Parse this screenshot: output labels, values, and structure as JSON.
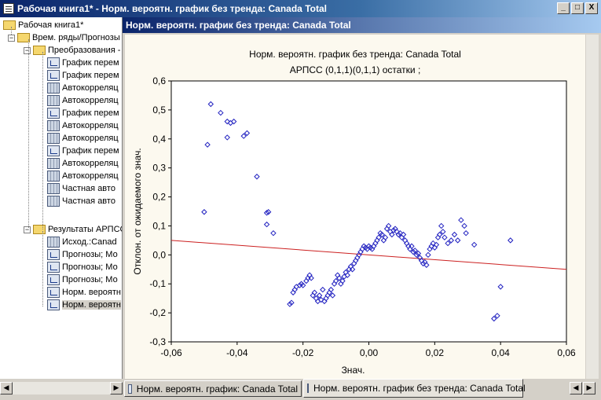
{
  "window": {
    "title": "Рабочая книга1* - Норм. вероятн. график без тренда: Canada Total",
    "min": "_",
    "max": "□",
    "close": "X"
  },
  "tree": {
    "root": "Рабочая книга1*",
    "level1": "Врем. ряды/Прогнозы",
    "group1": "Преобразования -",
    "group1_items": [
      "График перем",
      "График перем",
      "Автокорреляц",
      "Автокорреляц",
      "График перем",
      "Автокорреляц",
      "Автокорреляц",
      "График перем",
      "Автокорреляц",
      "Автокорреляц",
      "Частная авто",
      "Частная авто"
    ],
    "group2": "Результаты АРПСС",
    "group2_items": [
      "Исход.:Canad",
      "Прогнозы; Мо",
      "Прогнозы; Мо",
      "Прогнозы; Мо",
      "Норм. вероятн",
      "Норм. вероятн"
    ]
  },
  "child_window": {
    "title": "Норм. вероятн. график без тренда: Canada Total"
  },
  "tabs": [
    "Норм. вероятн. график:  Canada Total",
    "Норм. вероятн. график без тренда: Canada Total"
  ],
  "chart_data": {
    "type": "scatter",
    "title": "Норм. вероятн. график без тренда: Canada Total",
    "subtitle": "АРПСС (0,1,1)(0,1,1) остатки  ;",
    "xlabel": "Знач.",
    "ylabel": "Отклон. от ожидаемого знач.",
    "xlim": [
      -0.06,
      0.06
    ],
    "ylim": [
      -0.3,
      0.6
    ],
    "xticks": [
      "-0,06",
      "-0,04",
      "-0,02",
      "0,00",
      "0,02",
      "0,04",
      "0,06"
    ],
    "yticks": [
      "-0,3",
      "-0,2",
      "-0,1",
      "0,0",
      "0,1",
      "0,2",
      "0,3",
      "0,4",
      "0,5",
      "0,6"
    ],
    "line": {
      "x": [
        -0.06,
        0.06
      ],
      "y": [
        0.05,
        -0.05
      ],
      "color": "#cc2020"
    },
    "point_color": "#2020c0",
    "points": [
      [
        -0.048,
        0.52
      ],
      [
        -0.045,
        0.49
      ],
      [
        -0.043,
        0.46
      ],
      [
        -0.042,
        0.455
      ],
      [
        -0.041,
        0.46
      ],
      [
        -0.038,
        0.41
      ],
      [
        -0.037,
        0.42
      ],
      [
        -0.043,
        0.405
      ],
      [
        -0.049,
        0.38
      ],
      [
        -0.034,
        0.27
      ],
      [
        -0.031,
        0.145
      ],
      [
        -0.0305,
        0.148
      ],
      [
        -0.031,
        0.105
      ],
      [
        -0.029,
        0.075
      ],
      [
        -0.05,
        0.148
      ],
      [
        -0.024,
        -0.17
      ],
      [
        -0.0235,
        -0.165
      ],
      [
        -0.023,
        -0.13
      ],
      [
        -0.0225,
        -0.12
      ],
      [
        -0.022,
        -0.11
      ],
      [
        -0.021,
        -0.105
      ],
      [
        -0.0205,
        -0.1
      ],
      [
        -0.02,
        -0.105
      ],
      [
        -0.019,
        -0.09
      ],
      [
        -0.0185,
        -0.08
      ],
      [
        -0.018,
        -0.07
      ],
      [
        -0.0175,
        -0.08
      ],
      [
        -0.017,
        -0.14
      ],
      [
        -0.0165,
        -0.13
      ],
      [
        -0.016,
        -0.15
      ],
      [
        -0.0155,
        -0.16
      ],
      [
        -0.015,
        -0.14
      ],
      [
        -0.0145,
        -0.155
      ],
      [
        -0.014,
        -0.12
      ],
      [
        -0.0135,
        -0.16
      ],
      [
        -0.013,
        -0.15
      ],
      [
        -0.0125,
        -0.14
      ],
      [
        -0.012,
        -0.13
      ],
      [
        -0.0115,
        -0.12
      ],
      [
        -0.011,
        -0.14
      ],
      [
        -0.0105,
        -0.1
      ],
      [
        -0.01,
        -0.09
      ],
      [
        -0.0095,
        -0.07
      ],
      [
        -0.009,
        -0.08
      ],
      [
        -0.0085,
        -0.1
      ],
      [
        -0.008,
        -0.09
      ],
      [
        -0.0075,
        -0.075
      ],
      [
        -0.007,
        -0.06
      ],
      [
        -0.0065,
        -0.07
      ],
      [
        -0.006,
        -0.05
      ],
      [
        -0.0055,
        -0.04
      ],
      [
        -0.005,
        -0.05
      ],
      [
        -0.0045,
        -0.03
      ],
      [
        -0.004,
        -0.02
      ],
      [
        -0.0035,
        -0.01
      ],
      [
        -0.003,
        0.0
      ],
      [
        -0.0025,
        0.01
      ],
      [
        -0.002,
        0.02
      ],
      [
        -0.0015,
        0.03
      ],
      [
        -0.001,
        0.025
      ],
      [
        -0.0005,
        0.02
      ],
      [
        0.0,
        0.03
      ],
      [
        0.0005,
        0.025
      ],
      [
        0.001,
        0.02
      ],
      [
        0.0015,
        0.03
      ],
      [
        0.002,
        0.04
      ],
      [
        0.0025,
        0.05
      ],
      [
        0.003,
        0.06
      ],
      [
        0.0035,
        0.075
      ],
      [
        0.004,
        0.07
      ],
      [
        0.0045,
        0.05
      ],
      [
        0.005,
        0.06
      ],
      [
        0.0055,
        0.09
      ],
      [
        0.006,
        0.1
      ],
      [
        0.0065,
        0.08
      ],
      [
        0.007,
        0.07
      ],
      [
        0.0075,
        0.085
      ],
      [
        0.008,
        0.09
      ],
      [
        0.0085,
        0.08
      ],
      [
        0.009,
        0.07
      ],
      [
        0.0095,
        0.075
      ],
      [
        0.01,
        0.06
      ],
      [
        0.0105,
        0.07
      ],
      [
        0.011,
        0.05
      ],
      [
        0.0115,
        0.04
      ],
      [
        0.012,
        0.03
      ],
      [
        0.0125,
        0.02
      ],
      [
        0.013,
        0.03
      ],
      [
        0.0135,
        0.01
      ],
      [
        0.014,
        0.015
      ],
      [
        0.0145,
        0.0
      ],
      [
        0.015,
        0.005
      ],
      [
        0.0155,
        -0.01
      ],
      [
        0.016,
        -0.02
      ],
      [
        0.0165,
        -0.03
      ],
      [
        0.017,
        -0.025
      ],
      [
        0.0175,
        -0.035
      ],
      [
        0.018,
        0.0
      ],
      [
        0.0185,
        0.02
      ],
      [
        0.019,
        0.03
      ],
      [
        0.0195,
        0.04
      ],
      [
        0.02,
        0.025
      ],
      [
        0.0205,
        0.035
      ],
      [
        0.021,
        0.06
      ],
      [
        0.0215,
        0.07
      ],
      [
        0.022,
        0.1
      ],
      [
        0.0225,
        0.08
      ],
      [
        0.023,
        0.06
      ],
      [
        0.024,
        0.04
      ],
      [
        0.025,
        0.05
      ],
      [
        0.026,
        0.07
      ],
      [
        0.027,
        0.05
      ],
      [
        0.028,
        0.12
      ],
      [
        0.029,
        0.1
      ],
      [
        0.0295,
        0.075
      ],
      [
        0.032,
        0.035
      ],
      [
        0.038,
        -0.22
      ],
      [
        0.039,
        -0.21
      ],
      [
        0.04,
        -0.11
      ],
      [
        0.043,
        0.05
      ]
    ]
  }
}
